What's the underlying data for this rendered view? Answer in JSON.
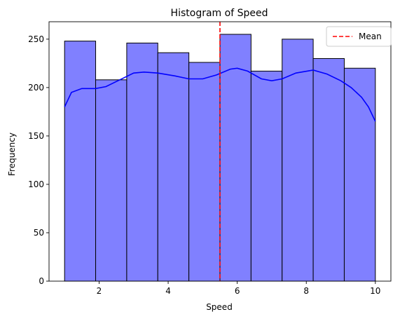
{
  "chart_data": {
    "type": "bar",
    "title": "Histogram of Speed",
    "xlabel": "Speed",
    "ylabel": "Frequency",
    "xlim": [
      0.55,
      10.45
    ],
    "ylim": [
      0,
      268
    ],
    "x_ticks": [
      2,
      4,
      6,
      8,
      10
    ],
    "y_ticks": [
      0,
      50,
      100,
      150,
      200,
      250
    ],
    "bins": [
      {
        "x0": 1.0,
        "x1": 1.9,
        "count": 248
      },
      {
        "x0": 1.9,
        "x1": 2.8,
        "count": 208
      },
      {
        "x0": 2.8,
        "x1": 3.7,
        "count": 246
      },
      {
        "x0": 3.7,
        "x1": 4.6,
        "count": 236
      },
      {
        "x0": 4.6,
        "x1": 5.5,
        "count": 226
      },
      {
        "x0": 5.5,
        "x1": 6.4,
        "count": 255
      },
      {
        "x0": 6.4,
        "x1": 7.3,
        "count": 217
      },
      {
        "x0": 7.3,
        "x1": 8.2,
        "count": 250
      },
      {
        "x0": 8.2,
        "x1": 9.1,
        "count": 230
      },
      {
        "x0": 9.1,
        "x1": 10.0,
        "count": 220
      }
    ],
    "kde_curve": {
      "x": [
        1.0,
        1.2,
        1.5,
        1.9,
        2.2,
        2.6,
        3.0,
        3.3,
        3.7,
        4.2,
        4.6,
        5.0,
        5.4,
        5.8,
        6.0,
        6.3,
        6.7,
        7.0,
        7.3,
        7.7,
        8.2,
        8.6,
        9.0,
        9.3,
        9.6,
        9.8,
        10.0
      ],
      "y": [
        180,
        195,
        199,
        199,
        201,
        208,
        215,
        216,
        215,
        212,
        209,
        209,
        213,
        219,
        220,
        217,
        209,
        207,
        209,
        215,
        218,
        214,
        207,
        200,
        190,
        180,
        165
      ]
    },
    "mean": 5.5,
    "legend": {
      "label": "Mean",
      "placement": "top-right"
    },
    "colors": {
      "bar_fill": "#8080ff",
      "bar_edge": "#000000",
      "kde": "#0000ff",
      "mean_line": "#ff0000"
    }
  }
}
